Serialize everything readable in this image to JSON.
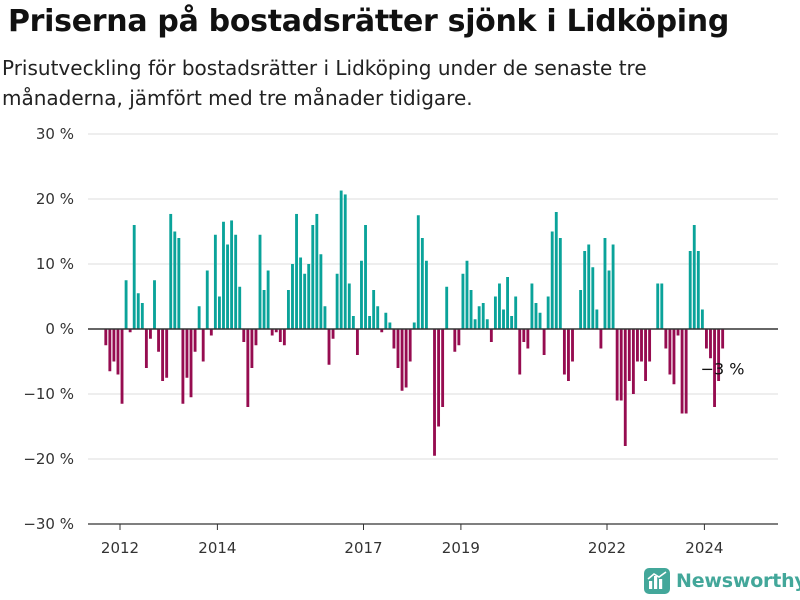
{
  "title": "Priserna på bostadsrätter sjönk i Lidköping",
  "subtitle": "Prisutveckling för bostadsrätter i Lidköping under de senaste tre månaderna, jämfört med tre månader tidigare.",
  "brand": {
    "name": "Newsworthy",
    "icon": "newsworthy-bar-chart-icon",
    "color": "#43a79a"
  },
  "chart_data": {
    "type": "bar",
    "ylim": [
      -30,
      30
    ],
    "y_ticks": [
      30,
      20,
      10,
      0,
      -10,
      -20,
      -30
    ],
    "y_tick_labels": [
      "30 %",
      "20 %",
      "10 %",
      "0 %",
      "−10 %",
      "−20 %",
      "−30 %"
    ],
    "x_ticks": [
      {
        "label": "2012",
        "year": 2012
      },
      {
        "label": "2014",
        "year": 2014
      },
      {
        "label": "2017",
        "year": 2017
      },
      {
        "label": "2019",
        "year": 2019
      },
      {
        "label": "2022",
        "year": 2022
      },
      {
        "label": "2024",
        "year": 2024
      }
    ],
    "x_start": "2011-09",
    "grid": "horizontal",
    "colors": {
      "positive": "#0aa39a",
      "negative": "#960c50"
    },
    "unit": "%",
    "annotation": {
      "text": "−3 %",
      "value": -3
    },
    "values": [
      -2.5,
      -6.5,
      -5,
      -7,
      -11.5,
      7.5,
      -0.5,
      16,
      5.5,
      4,
      -6,
      -1.5,
      7.5,
      -3.5,
      -8,
      -7.5,
      17.7,
      15,
      14,
      -11.5,
      -7.5,
      -10.5,
      -3.5,
      3.5,
      -5,
      9,
      -1,
      14.5,
      5,
      16.5,
      13,
      16.7,
      14.5,
      6.5,
      -2,
      -12,
      -6,
      -2.5,
      14.5,
      6,
      9,
      -1,
      -0.5,
      -2,
      -2.5,
      6,
      10,
      17.7,
      11,
      8.5,
      10,
      16,
      17.7,
      11.5,
      3.5,
      -5.5,
      -1.5,
      8.5,
      21.3,
      20.7,
      7,
      2,
      -4,
      10.5,
      16,
      2,
      6,
      3.5,
      -0.5,
      2.5,
      1,
      -3,
      -6,
      -9.5,
      -9,
      -5,
      1,
      17.5,
      14,
      10.5,
      0,
      -19.5,
      -15,
      -12,
      6.5,
      0,
      -3.5,
      -2.5,
      8.5,
      10.5,
      6,
      1.5,
      3.5,
      4,
      1.5,
      -2,
      5,
      7,
      3,
      8,
      2,
      5,
      -7,
      -2,
      -3,
      7,
      4,
      2.5,
      -4,
      5,
      15,
      18,
      14,
      -7,
      -8,
      -5,
      0,
      6,
      12,
      13,
      9.5,
      3,
      -3,
      14,
      9,
      13,
      -11,
      -11,
      -18,
      -8,
      -10,
      -5,
      -5,
      -8,
      -5,
      0,
      7,
      7,
      -3,
      -7,
      -8.5,
      -1,
      -13,
      -13,
      12,
      16,
      12,
      3,
      -3,
      -4.5,
      -12,
      -8,
      -3
    ]
  }
}
